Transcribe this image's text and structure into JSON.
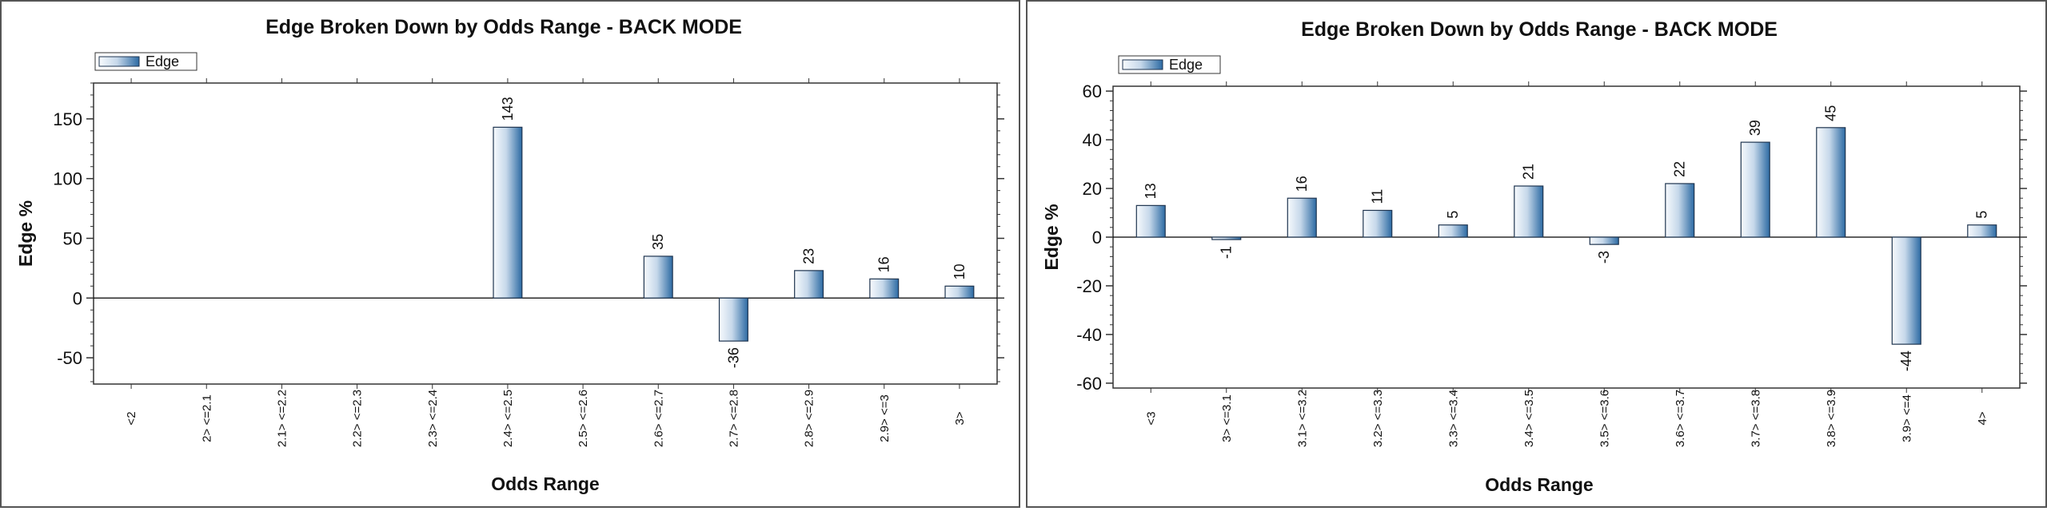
{
  "chart_data": [
    {
      "type": "bar",
      "title": "Edge Broken Down by Odds Range - BACK MODE",
      "xlabel": "Odds Range",
      "ylabel": "Edge %",
      "legend": "Edge",
      "legend_position": "top-left",
      "ylim": [
        -72,
        180
      ],
      "yticks": [
        -50,
        0,
        50,
        100,
        150
      ],
      "categories": [
        "<2",
        "2> <=2.1",
        "2.1> <=2.2",
        "2.2> <=2.3",
        "2.3> <=2.4",
        "2.4> <=2.5",
        "2.5> <=2.6",
        "2.6> <=2.7",
        "2.7> <=2.8",
        "2.8> <=2.9",
        "2.9> <=3",
        "3>"
      ],
      "values": [
        null,
        null,
        null,
        null,
        null,
        143,
        null,
        35,
        -36,
        23,
        16,
        10
      ]
    },
    {
      "type": "bar",
      "title": "Edge Broken Down by Odds Range - BACK MODE",
      "xlabel": "Odds Range",
      "ylabel": "Edge %",
      "legend": "Edge",
      "legend_position": "top-left",
      "ylim": [
        -62,
        62
      ],
      "yticks": [
        -60,
        -40,
        -20,
        0,
        20,
        40,
        60
      ],
      "categories": [
        "<3",
        "3> <=3.1",
        "3.1> <=3.2",
        "3.2> <=3.3",
        "3.3> <=3.4",
        "3.4> <=3.5",
        "3.5> <=3.6",
        "3.6> <=3.7",
        "3.7> <=3.8",
        "3.8> <=3.9",
        "3.9> <=4",
        "4>"
      ],
      "values": [
        13,
        -1,
        16,
        11,
        5,
        21,
        -3,
        22,
        39,
        45,
        -44,
        5
      ]
    }
  ],
  "colors": {
    "bar_light": "#f7fafd",
    "bar_dark": "#2c6aa3",
    "bar_stroke": "#1f3550",
    "axis": "#333333",
    "zero_line": "#000000"
  }
}
